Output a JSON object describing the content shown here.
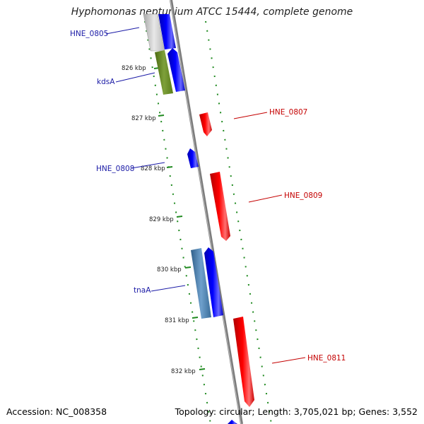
{
  "title": "Hyphomonas neptunium ATCC 15444, complete genome",
  "footer": {
    "accession": "Accession: NC_008358",
    "info": "Topology: circular; Length: 3,705,021 bp; Genes: 3,552"
  },
  "colors": {
    "forward_cds": "#0000ee",
    "reverse_cds": "#ee0000",
    "rna_gene": "#6b8e23",
    "gene_steel": "#4682b4",
    "pseudo_gray": "#c0c0c0",
    "tick_green": "#2e8b2e",
    "backbone": "#808080"
  },
  "ticks": [
    "826 kbp",
    "827 kbp",
    "828 kbp",
    "829 kbp",
    "830 kbp",
    "831 kbp",
    "832 kbp"
  ],
  "labels": {
    "hne0805": "HNE_0805",
    "kdsA": "kdsA",
    "hne0807": "HNE_0807",
    "hne0808": "HNE_0808",
    "hne0809": "HNE_0809",
    "tnaA": "tnaA",
    "hne0811": "HNE_0811"
  }
}
